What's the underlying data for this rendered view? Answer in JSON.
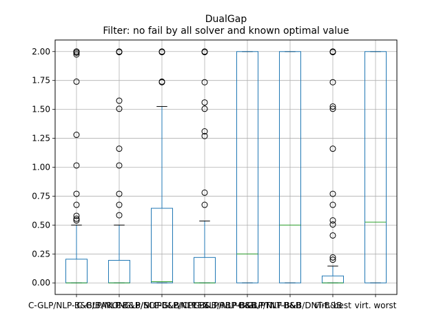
{
  "chart_data": {
    "type": "boxplot",
    "title": "DualGap",
    "subtitle": "Filter: no fail by all solver and known optimal value",
    "xlabel": "",
    "ylabel": "",
    "ylim": [
      -0.1,
      2.1
    ],
    "y_ticks": [
      0.0,
      0.25,
      0.5,
      0.75,
      1.0,
      1.25,
      1.5,
      1.75,
      2.0
    ],
    "y_tick_labels": [
      "0.00",
      "0.25",
      "0.50",
      "0.75",
      "1.00",
      "1.25",
      "1.50",
      "1.75",
      "2.00"
    ],
    "grid": true,
    "colors": {
      "box": "#1f77b4",
      "median": "#2ca02c",
      "whisker": "#1f77b4",
      "cap": "#000000",
      "grid": "#b0b0b0",
      "outlier": "#000000"
    },
    "categories": [
      "C-GLP/NLP-B&B/BARON",
      "C-GLP/NLP-B&B/SCIP",
      "C-GLP/NLP-B&B/CPLEX",
      "C-GLP/NLP-B&B/RBP-B&B",
      "C-GLP/NLP-B&B/PTNT-B&B",
      "C-GLP/NLP-B&B/DNT-B&B",
      "virt. best",
      "virt. worst"
    ],
    "boxes": [
      {
        "q1": 0.0,
        "median": 0.0,
        "q3": 0.205,
        "whisker_low": 0.0,
        "whisker_high": 0.5,
        "outliers": [
          0.54,
          0.555,
          0.58,
          0.675,
          0.77,
          1.015,
          1.28,
          1.74,
          1.975,
          1.99,
          2.0,
          2.0
        ]
      },
      {
        "q1": 0.0,
        "median": 0.0,
        "q3": 0.195,
        "whisker_low": 0.0,
        "whisker_high": 0.5,
        "outliers": [
          0.585,
          0.675,
          0.77,
          1.015,
          1.16,
          1.505,
          1.575,
          1.995,
          2.0
        ]
      },
      {
        "q1": 0.0,
        "median": 0.01,
        "q3": 0.645,
        "whisker_low": 0.0,
        "whisker_high": 1.525,
        "outliers": [
          1.735,
          1.74,
          1.995,
          2.0
        ]
      },
      {
        "q1": 0.0,
        "median": 0.0,
        "q3": 0.22,
        "whisker_low": 0.0,
        "whisker_high": 0.535,
        "outliers": [
          0.675,
          0.78,
          1.27,
          1.31,
          1.505,
          1.56,
          1.735,
          1.995,
          2.0
        ]
      },
      {
        "q1": 0.0,
        "median": 0.25,
        "q3": 2.0,
        "whisker_low": 0.0,
        "whisker_high": 2.0,
        "outliers": []
      },
      {
        "q1": 0.0,
        "median": 0.5,
        "q3": 2.0,
        "whisker_low": 0.0,
        "whisker_high": 2.0,
        "outliers": []
      },
      {
        "q1": 0.0,
        "median": 0.0,
        "q3": 0.06,
        "whisker_low": 0.0,
        "whisker_high": 0.145,
        "outliers": [
          0.2,
          0.22,
          0.41,
          0.505,
          0.54,
          0.675,
          0.77,
          1.16,
          1.505,
          1.525,
          1.735,
          1.995,
          2.0
        ]
      },
      {
        "q1": 0.0,
        "median": 0.525,
        "q3": 2.0,
        "whisker_low": 0.0,
        "whisker_high": 2.0,
        "outliers": []
      }
    ]
  }
}
